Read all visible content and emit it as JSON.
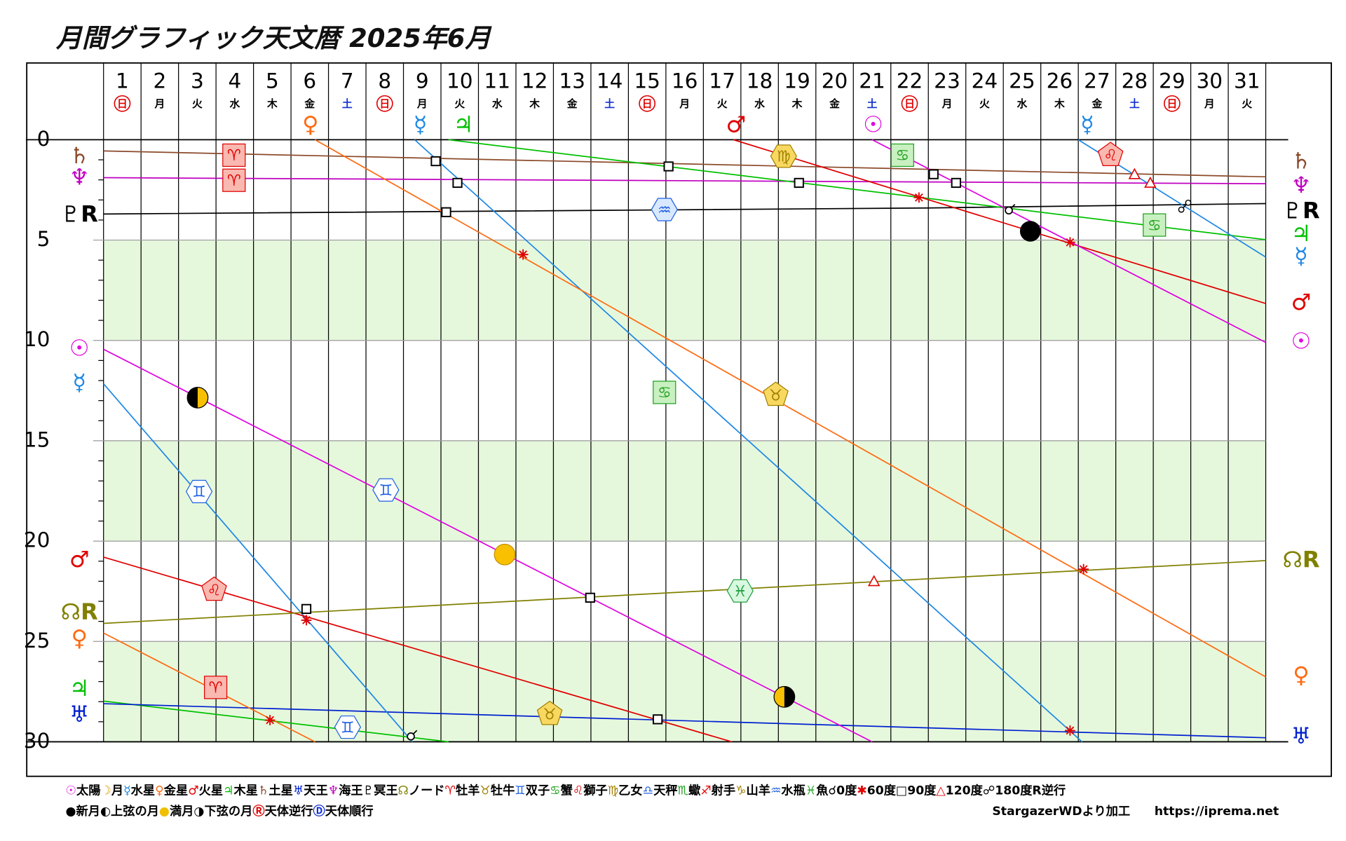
{
  "chart_data": {
    "type": "line",
    "title": "月間グラフィック天文暦 2025年6月",
    "xlim": [
      0,
      31
    ],
    "xticks": [
      0,
      1,
      2,
      3,
      4,
      5,
      6,
      7,
      8,
      9,
      10,
      11,
      12,
      13,
      14,
      15,
      16,
      17,
      18,
      19,
      20,
      21,
      22,
      23,
      24,
      25,
      26,
      27,
      28,
      29,
      30,
      31
    ],
    "ylim": [
      0,
      30
    ],
    "y_inverted": true,
    "yticks": [
      0,
      5,
      10,
      15,
      20,
      25,
      30
    ],
    "yminor_ticks": [
      1,
      2,
      3,
      4,
      6,
      7,
      8,
      9,
      11,
      12,
      13,
      14,
      16,
      17,
      18,
      19,
      21,
      22,
      23,
      24,
      26,
      27,
      28,
      29
    ],
    "bands": [
      [
        5,
        10
      ],
      [
        15,
        20
      ],
      [
        25,
        30
      ]
    ],
    "band_color": "#e6f8dc",
    "days": [
      {
        "day": 1,
        "weekday": "日",
        "color": "#e00000",
        "circled": true
      },
      {
        "day": 2,
        "weekday": "月",
        "color": "#000"
      },
      {
        "day": 3,
        "weekday": "火",
        "color": "#000"
      },
      {
        "day": 4,
        "weekday": "水",
        "color": "#000"
      },
      {
        "day": 5,
        "weekday": "木",
        "color": "#000"
      },
      {
        "day": 6,
        "weekday": "金",
        "color": "#000"
      },
      {
        "day": 7,
        "weekday": "土",
        "color": "#1030d0"
      },
      {
        "day": 8,
        "weekday": "日",
        "color": "#e00000",
        "circled": true
      },
      {
        "day": 9,
        "weekday": "月",
        "color": "#000"
      },
      {
        "day": 10,
        "weekday": "火",
        "color": "#000"
      },
      {
        "day": 11,
        "weekday": "水",
        "color": "#000"
      },
      {
        "day": 12,
        "weekday": "木",
        "color": "#000"
      },
      {
        "day": 13,
        "weekday": "金",
        "color": "#000"
      },
      {
        "day": 14,
        "weekday": "土",
        "color": "#1030d0"
      },
      {
        "day": 15,
        "weekday": "日",
        "color": "#e00000",
        "circled": true
      },
      {
        "day": 16,
        "weekday": "月",
        "color": "#000"
      },
      {
        "day": 17,
        "weekday": "火",
        "color": "#000"
      },
      {
        "day": 18,
        "weekday": "水",
        "color": "#000"
      },
      {
        "day": 19,
        "weekday": "木",
        "color": "#000"
      },
      {
        "day": 20,
        "weekday": "金",
        "color": "#000"
      },
      {
        "day": 21,
        "weekday": "土",
        "color": "#1030d0"
      },
      {
        "day": 22,
        "weekday": "日",
        "color": "#e00000",
        "circled": true
      },
      {
        "day": 23,
        "weekday": "月",
        "color": "#000"
      },
      {
        "day": 24,
        "weekday": "火",
        "color": "#000"
      },
      {
        "day": 25,
        "weekday": "水",
        "color": "#000"
      },
      {
        "day": 26,
        "weekday": "木",
        "color": "#000"
      },
      {
        "day": 27,
        "weekday": "金",
        "color": "#000"
      },
      {
        "day": 28,
        "weekday": "土",
        "color": "#1030d0"
      },
      {
        "day": 29,
        "weekday": "日",
        "color": "#e00000",
        "circled": true
      },
      {
        "day": 30,
        "weekday": "月",
        "color": "#000"
      },
      {
        "day": 31,
        "weekday": "火",
        "color": "#000"
      }
    ],
    "series": [
      {
        "color": "#8b4a2b",
        "x": [
          0,
          31
        ],
        "values": [
          0.56,
          1.85
        ]
      },
      {
        "color": "#c000c0",
        "x": [
          0,
          31
        ],
        "values": [
          1.89,
          2.19
        ]
      },
      {
        "color": "#000000",
        "x": [
          0,
          22,
          31
        ],
        "values": [
          3.7,
          3.4,
          3.18
        ]
      },
      {
        "color": "#00c000",
        "x": [
          0,
          9.2,
          9.2,
          9.2,
          31
        ],
        "values": [
          27.97,
          30,
          null,
          0,
          4.98
        ]
      },
      {
        "color": "#0020d0",
        "x": [
          0,
          31
        ],
        "values": [
          28.1,
          29.8
        ]
      },
      {
        "color": "#1e88e5",
        "x": [
          0,
          8.24,
          8.24,
          8.3,
          26.1,
          26.1,
          26.0,
          31
        ],
        "values": [
          12.16,
          30,
          null,
          0,
          30,
          null,
          0,
          5.85
        ]
      },
      {
        "color": "#ff6a10",
        "x": [
          0,
          5.64,
          5.64,
          5.64,
          31
        ],
        "values": [
          24.58,
          30,
          null,
          0,
          26.77
        ]
      },
      {
        "color": "#e00000",
        "x": [
          0,
          16.76,
          16.76,
          16.8,
          31
        ],
        "values": [
          20.8,
          30,
          null,
          0,
          8.16
        ]
      },
      {
        "color": "#e000e0",
        "x": [
          0,
          20.5,
          20.5,
          20.5,
          31
        ],
        "values": [
          10.44,
          30,
          null,
          0,
          10.1
        ]
      },
      {
        "color": "#808000",
        "x": [
          0,
          31
        ],
        "values": [
          24.1,
          20.97
        ]
      }
    ],
    "planet_labels": [
      {
        "text": "♄",
        "side": "left",
        "y": 0.86,
        "color": "#8b4a2b"
      },
      {
        "text": "♆",
        "side": "left",
        "y": 1.93,
        "color": "#c000c0"
      },
      {
        "text": "♇R",
        "side": "left",
        "y": 3.78,
        "color": "#000"
      },
      {
        "text": "☉",
        "side": "left",
        "y": 10.44,
        "color": "#e000e0"
      },
      {
        "text": "☿",
        "side": "left",
        "y": 12.16,
        "color": "#1e88e5"
      },
      {
        "text": "♂",
        "side": "left",
        "y": 20.97,
        "color": "#e00000"
      },
      {
        "text": "☊R",
        "side": "left",
        "y": 23.6,
        "color": "#808000"
      },
      {
        "text": "♀",
        "side": "left",
        "y": 24.9,
        "color": "#ff6a10"
      },
      {
        "text": "♃",
        "side": "left",
        "y": 27.4,
        "color": "#00c000"
      },
      {
        "text": "♅",
        "side": "left",
        "y": 28.7,
        "color": "#0020d0"
      },
      {
        "text": "♄",
        "side": "right",
        "y": 1.12,
        "color": "#8b4a2b"
      },
      {
        "text": "♆",
        "side": "right",
        "y": 2.32,
        "color": "#c000c0"
      },
      {
        "text": "♇R",
        "side": "right",
        "y": 3.61,
        "color": "#000"
      },
      {
        "text": "♃",
        "side": "right",
        "y": 4.73,
        "color": "#00c000"
      },
      {
        "text": "☿",
        "side": "right",
        "y": 5.85,
        "color": "#1e88e5"
      },
      {
        "text": "♂",
        "side": "right",
        "y": 8.16,
        "color": "#e00000"
      },
      {
        "text": "☉",
        "side": "right",
        "y": 10.1,
        "color": "#e000e0"
      },
      {
        "text": "☊R",
        "side": "right",
        "y": 21.0,
        "color": "#808000"
      },
      {
        "text": "♀",
        "side": "right",
        "y": 26.73,
        "color": "#ff6a10"
      },
      {
        "text": "♅",
        "side": "right",
        "y": 29.78,
        "color": "#0020d0"
      },
      {
        "text": "♀",
        "side": "top",
        "x": 5.52,
        "color": "#ff6a10"
      },
      {
        "text": "☿",
        "side": "top",
        "x": 8.45,
        "color": "#1e88e5"
      },
      {
        "text": "♃",
        "side": "top",
        "x": 9.6,
        "color": "#00c000"
      },
      {
        "text": "♂",
        "side": "top",
        "x": 16.87,
        "color": "#e00000"
      },
      {
        "text": "☉",
        "side": "top",
        "x": 20.53,
        "color": "#e000e0"
      },
      {
        "text": "☿",
        "side": "top",
        "x": 26.24,
        "color": "#1e88e5"
      }
    ],
    "signs": [
      {
        "glyph": "♈",
        "x": 3.48,
        "y": 0.77,
        "shape": "square",
        "fill": "#f9b8b0",
        "stroke": "#e00000"
      },
      {
        "glyph": "♈",
        "x": 3.48,
        "y": 2.02,
        "shape": "square",
        "fill": "#f9b8b0",
        "stroke": "#e00000"
      },
      {
        "glyph": "♈",
        "x": 2.99,
        "y": 27.29,
        "shape": "square",
        "fill": "#f9b8b0",
        "stroke": "#e00000"
      },
      {
        "glyph": "♍",
        "x": 18.14,
        "y": 0.82,
        "shape": "hex",
        "fill": "#f8d860",
        "stroke": "#a08000"
      },
      {
        "glyph": "♋",
        "x": 21.31,
        "y": 0.77,
        "shape": "square",
        "fill": "#c8f0c0",
        "stroke": "#20a020"
      },
      {
        "glyph": "♋",
        "x": 28.03,
        "y": 4.25,
        "shape": "square",
        "fill": "#c8f0c0",
        "stroke": "#20a020"
      },
      {
        "glyph": "♋",
        "x": 14.96,
        "y": 12.59,
        "shape": "square",
        "fill": "#c8f0c0",
        "stroke": "#20a020"
      },
      {
        "glyph": "♌",
        "x": 26.86,
        "y": 0.77,
        "shape": "pent",
        "fill": "#f9b8b0",
        "stroke": "#e00000"
      },
      {
        "glyph": "♌",
        "x": 2.95,
        "y": 22.43,
        "shape": "pent",
        "fill": "#f9b8b0",
        "stroke": "#e00000"
      },
      {
        "glyph": "♒",
        "x": 14.96,
        "y": 3.48,
        "shape": "hex",
        "fill": "#d8e8ff",
        "stroke": "#1e60e0"
      },
      {
        "glyph": "♉",
        "x": 17.93,
        "y": 12.72,
        "shape": "pent",
        "fill": "#f8d860",
        "stroke": "#a08000"
      },
      {
        "glyph": "♉",
        "x": 11.9,
        "y": 28.62,
        "shape": "pent",
        "fill": "#f8d860",
        "stroke": "#a08000"
      },
      {
        "glyph": "♊",
        "x": 2.55,
        "y": 17.53,
        "shape": "hex",
        "fill": "#ffffff",
        "stroke": "#1e60e0"
      },
      {
        "glyph": "♊",
        "x": 7.53,
        "y": 17.45,
        "shape": "hex",
        "fill": "#ffffff",
        "stroke": "#1e60e0"
      },
      {
        "glyph": "♊",
        "x": 6.51,
        "y": 29.27,
        "shape": "hex",
        "fill": "#ffffff",
        "stroke": "#1e60e0"
      },
      {
        "glyph": "♓",
        "x": 16.98,
        "y": 22.48,
        "shape": "hex",
        "fill": "#d8f8e0",
        "stroke": "#20a040"
      }
    ],
    "aspects": [
      {
        "kind": "square",
        "x": 8.86,
        "y": 1.07
      },
      {
        "kind": "square",
        "x": 9.44,
        "y": 2.15
      },
      {
        "kind": "square",
        "x": 9.14,
        "y": 3.61
      },
      {
        "kind": "square",
        "x": 15.07,
        "y": 1.33
      },
      {
        "kind": "square",
        "x": 18.55,
        "y": 2.15
      },
      {
        "kind": "square",
        "x": 22.14,
        "y": 1.72
      },
      {
        "kind": "square",
        "x": 22.74,
        "y": 2.15
      },
      {
        "kind": "square",
        "x": 5.41,
        "y": 23.38
      },
      {
        "kind": "square",
        "x": 12.98,
        "y": 22.82
      },
      {
        "kind": "square",
        "x": 14.78,
        "y": 28.88
      },
      {
        "kind": "star",
        "x": 11.19,
        "y": 5.72
      },
      {
        "kind": "star",
        "x": 21.75,
        "y": 2.88
      },
      {
        "kind": "star",
        "x": 25.78,
        "y": 5.11
      },
      {
        "kind": "star",
        "x": 5.41,
        "y": 23.94
      },
      {
        "kind": "star",
        "x": 4.44,
        "y": 28.92
      },
      {
        "kind": "star",
        "x": 26.14,
        "y": 21.4
      },
      {
        "kind": "star",
        "x": 25.78,
        "y": 29.44
      },
      {
        "kind": "triangle",
        "x": 27.5,
        "y": 1.72
      },
      {
        "kind": "triangle",
        "x": 27.92,
        "y": 2.15
      },
      {
        "kind": "triangle",
        "x": 20.55,
        "y": 22.0
      },
      {
        "kind": "conj",
        "x": 24.17,
        "y": 3.48
      },
      {
        "kind": "conj",
        "x": 8.22,
        "y": 29.69
      },
      {
        "kind": "opp",
        "x": 28.84,
        "y": 3.31
      }
    ],
    "moons": [
      {
        "kind": "new",
        "x": 24.72,
        "y": 4.56
      },
      {
        "kind": "full",
        "x": 10.7,
        "y": 20.67
      },
      {
        "kind": "first",
        "x": 2.51,
        "y": 12.85
      },
      {
        "kind": "last",
        "x": 18.16,
        "y": 27.76
      }
    ],
    "legend_row1": [
      {
        "symbol": "☉",
        "label": "太陽",
        "color": "#e000e0"
      },
      {
        "symbol": "☽",
        "label": "月",
        "color": "#e0a000"
      },
      {
        "symbol": "☿",
        "label": "水星",
        "color": "#1e88e5"
      },
      {
        "symbol": "♀",
        "label": "金星",
        "color": "#ff6a10"
      },
      {
        "symbol": "♂",
        "label": "火星",
        "color": "#e00000"
      },
      {
        "symbol": "♃",
        "label": "木星",
        "color": "#00c000"
      },
      {
        "symbol": "♄",
        "label": "土星",
        "color": "#8b4a2b"
      },
      {
        "symbol": "♅",
        "label": "天王",
        "color": "#0020d0"
      },
      {
        "symbol": "♆",
        "label": "海王",
        "color": "#c000c0"
      },
      {
        "symbol": "♇",
        "label": "冥王",
        "color": "#000"
      },
      {
        "symbol": "☊",
        "label": "ノード",
        "color": "#808000"
      },
      {
        "symbol": "♈",
        "label": "牡羊",
        "color": "#e00000"
      },
      {
        "symbol": "♉",
        "label": "牡牛",
        "color": "#a08000"
      },
      {
        "symbol": "♊",
        "label": "双子",
        "color": "#1e60e0"
      },
      {
        "symbol": "♋",
        "label": "蟹",
        "color": "#20a020"
      },
      {
        "symbol": "♌",
        "label": "獅子",
        "color": "#e00000"
      },
      {
        "symbol": "♍",
        "label": "乙女",
        "color": "#a08000"
      },
      {
        "symbol": "♎",
        "label": "天秤",
        "color": "#1e60e0"
      },
      {
        "symbol": "♏",
        "label": "蠍",
        "color": "#20a020"
      },
      {
        "symbol": "♐",
        "label": "射手",
        "color": "#e00000"
      },
      {
        "symbol": "♑",
        "label": "山羊",
        "color": "#a08000"
      },
      {
        "symbol": "♒",
        "label": "水瓶",
        "color": "#1e60e0"
      },
      {
        "symbol": "♓",
        "label": "魚",
        "color": "#20a020"
      },
      {
        "symbol": "☌",
        "label": "0度",
        "color": "#000"
      },
      {
        "symbol": "✱",
        "label": "60度",
        "color": "#e00000"
      },
      {
        "symbol": "□",
        "label": "90度",
        "color": "#000"
      },
      {
        "symbol": "△",
        "label": "120度",
        "color": "#e00000"
      },
      {
        "symbol": "☍",
        "label": "180度",
        "color": "#000"
      },
      {
        "symbol": "R",
        "label": "逆行",
        "color": "#000"
      }
    ],
    "legend_row2": [
      {
        "symbol": "●",
        "label": "新月",
        "color": "#000"
      },
      {
        "symbol": "◐",
        "label": "上弦の月",
        "color": "#000"
      },
      {
        "symbol": "●",
        "label": "満月",
        "color": "#f0c000"
      },
      {
        "symbol": "◑",
        "label": "下弦の月",
        "color": "#000"
      },
      {
        "symbol": "Ⓡ",
        "label": "天体逆行",
        "color": "#e00000"
      },
      {
        "symbol": "Ⓓ",
        "label": "天体順行",
        "color": "#1030d0"
      }
    ],
    "credit": "StargazerWDより加工",
    "url": "https://iprema.net"
  }
}
